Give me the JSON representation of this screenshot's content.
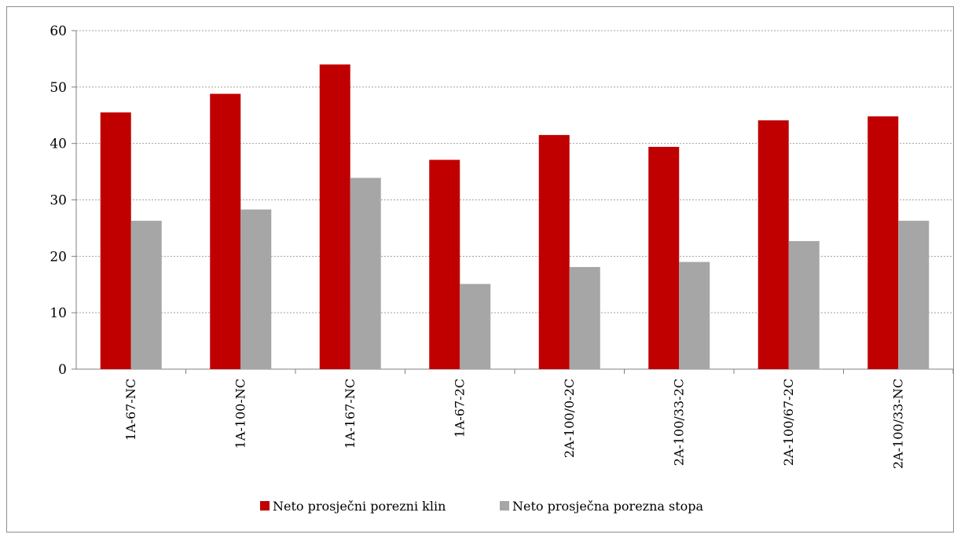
{
  "chart_data": {
    "type": "bar",
    "categories": [
      "1A-67-NC",
      "1A-100-NC",
      "1A-167-NC",
      "1A-67-2C",
      "2A-100/0-2C",
      "2A-100/33-2C",
      "2A-100/67-2C",
      "2A-100/33-NC"
    ],
    "series": [
      {
        "name": "Neto prosječni porezni klin",
        "color": "#c00000",
        "values": [
          45.5,
          48.8,
          54.0,
          37.1,
          41.5,
          39.4,
          44.1,
          44.8
        ]
      },
      {
        "name": "Neto prosječna porezna stopa",
        "color": "#a6a6a6",
        "values": [
          26.3,
          28.3,
          33.9,
          15.1,
          18.1,
          19.0,
          22.7,
          26.3
        ]
      }
    ],
    "ylim": [
      0,
      60
    ],
    "yticks": [
      "0",
      "10",
      "20",
      "30",
      "40",
      "50",
      "60"
    ],
    "grid": true,
    "legend_position": "bottom"
  }
}
